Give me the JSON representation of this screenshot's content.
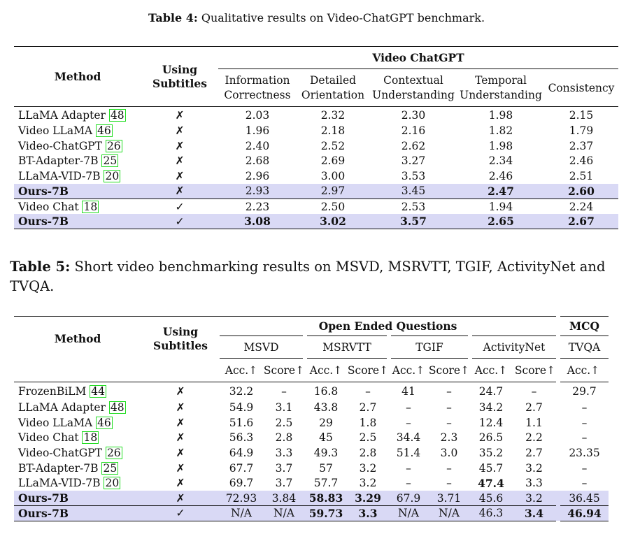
{
  "table4": {
    "caption_label": "Table 4:",
    "caption_text": "Qualitative results on Video-ChatGPT benchmark.",
    "header": {
      "method": "Method",
      "using": "Using",
      "subtitles": "Subtitles",
      "group": "Video ChatGPT",
      "cols": [
        [
          "Information",
          "Correctness"
        ],
        [
          "Detailed",
          "Orientation"
        ],
        [
          "Contextual",
          "Understanding"
        ],
        [
          "Temporal",
          "Understanding"
        ],
        [
          "Consistency",
          ""
        ]
      ]
    },
    "rows": [
      {
        "name": "LLaMA Adapter ",
        "ref": "48",
        "sub": "✗",
        "vals": [
          "2.03",
          "2.32",
          "2.30",
          "1.98",
          "2.15"
        ]
      },
      {
        "name": "Video LLaMA ",
        "ref": "46",
        "sub": "✗",
        "vals": [
          "1.96",
          "2.18",
          "2.16",
          "1.82",
          "1.79"
        ]
      },
      {
        "name": "Video-ChatGPT ",
        "ref": "26",
        "sub": "✗",
        "vals": [
          "2.40",
          "2.52",
          "2.62",
          "1.98",
          "2.37"
        ]
      },
      {
        "name": "BT-Adapter-7B ",
        "ref": "25",
        "sub": "✗",
        "vals": [
          "2.68",
          "2.69",
          "3.27",
          "2.34",
          "2.46"
        ]
      },
      {
        "name": "LLaMA-VID-7B ",
        "ref": "20",
        "sub": "✗",
        "vals": [
          "2.96",
          "3.00",
          "3.53",
          "2.46",
          "2.51"
        ]
      },
      {
        "name": "Ours-7B",
        "ref": "",
        "sub": "✗",
        "vals": [
          "2.93",
          "2.97",
          "3.45",
          "2.47",
          "2.60"
        ]
      },
      {
        "name": "Video Chat ",
        "ref": "18",
        "sub": "✓",
        "vals": [
          "2.23",
          "2.50",
          "2.53",
          "1.94",
          "2.24"
        ]
      },
      {
        "name": "Ours-7B",
        "ref": "",
        "sub": "✓",
        "vals": [
          "3.08",
          "3.02",
          "3.57",
          "2.65",
          "2.67"
        ]
      }
    ]
  },
  "table5": {
    "caption_label": "Table 5:",
    "caption_text": "Short video benchmarking results on MSVD, MSRVTT, TGIF, ActivityNet and TVQA.",
    "header": {
      "method": "Method",
      "using": "Using",
      "subtitles": "Subtitles",
      "open_group": "Open Ended Questions",
      "mcq_group": "MCQ",
      "datasets": [
        "MSVD",
        "MSRVTT",
        "TGIF",
        "ActivityNet"
      ],
      "mcq_dataset": "TVQA",
      "acc": "Acc.↑",
      "score": "Score↑"
    },
    "rows": [
      {
        "name": "FrozenBiLM ",
        "ref": "44",
        "sub": "✗",
        "vals": [
          "32.2",
          "–",
          "16.8",
          "–",
          "41",
          "–",
          "24.7",
          "–",
          "29.7"
        ]
      },
      {
        "name": "LLaMA Adapter ",
        "ref": "48",
        "sub": "✗",
        "vals": [
          "54.9",
          "3.1",
          "43.8",
          "2.7",
          "–",
          "–",
          "34.2",
          "2.7",
          "–"
        ]
      },
      {
        "name": "Video LLaMA ",
        "ref": "46",
        "sub": "✗",
        "vals": [
          "51.6",
          "2.5",
          "29",
          "1.8",
          "–",
          "–",
          "12.4",
          "1.1",
          "–"
        ]
      },
      {
        "name": "Video Chat ",
        "ref": "18",
        "sub": "✗",
        "vals": [
          "56.3",
          "2.8",
          "45",
          "2.5",
          "34.4",
          "2.3",
          "26.5",
          "2.2",
          "–"
        ]
      },
      {
        "name": "Video-ChatGPT ",
        "ref": "26",
        "sub": "✗",
        "vals": [
          "64.9",
          "3.3",
          "49.3",
          "2.8",
          "51.4",
          "3.0",
          "35.2",
          "2.7",
          "23.35"
        ]
      },
      {
        "name": "BT-Adapter-7B ",
        "ref": "25",
        "sub": "✗",
        "vals": [
          "67.7",
          "3.7",
          "57",
          "3.2",
          "–",
          "–",
          "45.7",
          "3.2",
          "–"
        ]
      },
      {
        "name": "LLaMA-VID-7B ",
        "ref": "20",
        "sub": "✗",
        "vals": [
          "69.7",
          "3.7",
          "57.7",
          "3.2",
          "–",
          "–",
          "47.4",
          "3.3",
          "–"
        ]
      },
      {
        "name": "Ours-7B",
        "ref": "",
        "sub": "✗",
        "vals": [
          "72.93",
          "3.84",
          "58.83",
          "3.29",
          "67.9",
          "3.71",
          "45.6",
          "3.2",
          "36.45"
        ]
      },
      {
        "name": "Ours-7B",
        "ref": "",
        "sub": "✓",
        "vals": [
          "N/A",
          "N/A",
          "59.73",
          "3.3",
          "N/A",
          "N/A",
          "46.3",
          "3.4",
          "46.94"
        ]
      }
    ]
  }
}
